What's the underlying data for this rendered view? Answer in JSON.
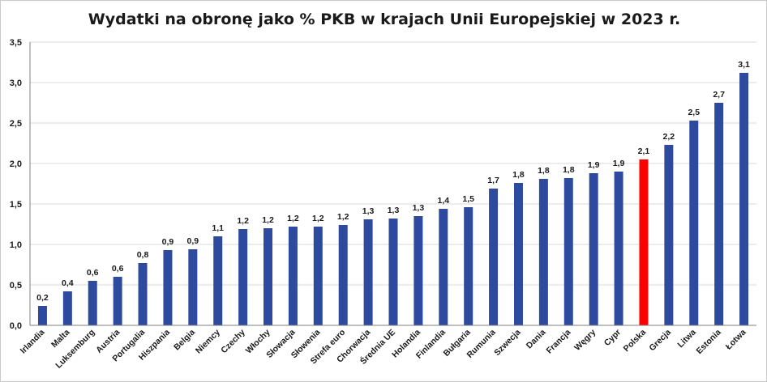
{
  "chart_data": {
    "type": "bar",
    "title": "Wydatki na obronę jako % PKB w krajach Unii Europejskiej w 2023 r.",
    "xlabel": "",
    "ylabel": "",
    "ylim": [
      0,
      3.5
    ],
    "yticks": [
      "0,0",
      "0,5",
      "1,0",
      "1,5",
      "2,0",
      "2,5",
      "3,0",
      "3,5"
    ],
    "grid": true,
    "legend": "none",
    "colors": {
      "default": "#2e4a9e",
      "highlight": "#ff0000",
      "grid": "#d9d9d9",
      "axis": "#7f7f7f"
    },
    "highlight_category": "Polska",
    "categories": [
      "Irlandia",
      "Malta",
      "Luksemburg",
      "Austria",
      "Portugalia",
      "Hiszpania",
      "Belgia",
      "Niemcy",
      "Czechy",
      "Włochy",
      "Słowacja",
      "Słowenia",
      "Strefa euro",
      "Chorwacja",
      "Średnia UE",
      "Holandia",
      "Finlandia",
      "Bułgaria",
      "Rumunia",
      "Szwecja",
      "Dania",
      "Francja",
      "Węgry",
      "Cypr",
      "Polska",
      "Grecja",
      "Litwa",
      "Estonia",
      "Łotwa"
    ],
    "values": [
      0.24,
      0.42,
      0.55,
      0.6,
      0.77,
      0.93,
      0.94,
      1.1,
      1.19,
      1.2,
      1.22,
      1.22,
      1.24,
      1.31,
      1.32,
      1.35,
      1.44,
      1.46,
      1.69,
      1.76,
      1.81,
      1.82,
      1.88,
      1.9,
      2.05,
      2.23,
      2.53,
      2.75,
      3.12
    ],
    "data_labels": [
      "0,2",
      "0,4",
      "0,6",
      "0,6",
      "0,8",
      "0,9",
      "0,9",
      "1,1",
      "1,2",
      "1,2",
      "1,2",
      "1,2",
      "1,2",
      "1,3",
      "1,3",
      "1,3",
      "1,4",
      "1,5",
      "1,7",
      "1,8",
      "1,8",
      "1,8",
      "1,9",
      "1,9",
      "2,1",
      "2,2",
      "2,5",
      "2,7",
      "3,1"
    ]
  }
}
